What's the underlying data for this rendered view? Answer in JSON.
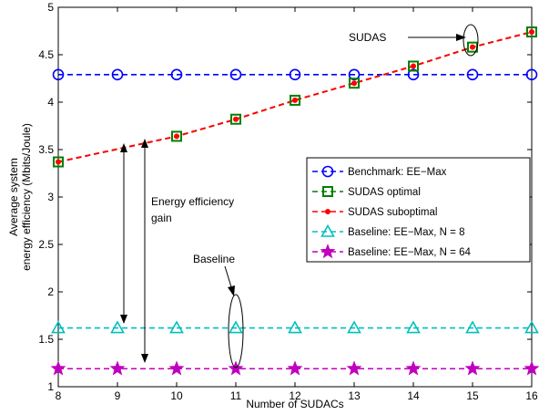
{
  "chart_data": {
    "type": "line",
    "xlabel": "Number of SUDACs",
    "ylabel_lines": [
      "Average system",
      "energy efficiency (Mbits/Joule)"
    ],
    "xlim": [
      8,
      16
    ],
    "ylim": [
      1,
      5
    ],
    "xticks": [
      "8",
      "9",
      "10",
      "11",
      "12",
      "13",
      "14",
      "15",
      "16"
    ],
    "yticks": [
      "1",
      "1.5",
      "2",
      "2.5",
      "3",
      "3.5",
      "4",
      "4.5",
      "5"
    ],
    "grid": false,
    "legend_position": "middle-right",
    "series": [
      {
        "name": "Benchmark: EE−Max",
        "color": "#0000ff",
        "style": "dash",
        "marker": "circle",
        "x": [
          8,
          9,
          10,
          11,
          12,
          13,
          14,
          15,
          16
        ],
        "y": [
          4.29,
          4.29,
          4.29,
          4.29,
          4.29,
          4.29,
          4.29,
          4.29,
          4.29
        ]
      },
      {
        "name": "SUDAS optimal",
        "color": "#008000",
        "style": "dash",
        "marker": "square",
        "x": [
          8,
          10,
          11,
          12,
          13,
          14,
          15,
          16
        ],
        "y": [
          3.37,
          3.64,
          3.82,
          4.02,
          4.2,
          4.38,
          4.58,
          4.74
        ]
      },
      {
        "name": "SUDAS suboptimal",
        "color": "#ff0000",
        "style": "dash",
        "marker": "dot",
        "x": [
          8,
          10,
          11,
          12,
          13,
          14,
          15,
          16
        ],
        "y": [
          3.37,
          3.64,
          3.82,
          4.02,
          4.2,
          4.38,
          4.58,
          4.74
        ]
      },
      {
        "name": "Baseline: EE−Max, N = 8",
        "color": "#00bfbf",
        "style": "dash",
        "marker": "triangle",
        "x": [
          8,
          9,
          10,
          11,
          12,
          13,
          14,
          15,
          16
        ],
        "y": [
          1.62,
          1.62,
          1.62,
          1.62,
          1.62,
          1.62,
          1.62,
          1.62,
          1.62
        ]
      },
      {
        "name": "Baseline: EE−Max, N = 64",
        "color": "#bf00bf",
        "style": "dash",
        "marker": "star",
        "x": [
          8,
          9,
          10,
          11,
          12,
          13,
          14,
          15,
          16
        ],
        "y": [
          1.19,
          1.19,
          1.19,
          1.19,
          1.19,
          1.19,
          1.19,
          1.19,
          1.19
        ]
      }
    ],
    "annotations": {
      "sudas": "SUDAS",
      "gain_line1": "Energy efficiency",
      "gain_line2": "gain",
      "baseline": "Baseline"
    }
  }
}
